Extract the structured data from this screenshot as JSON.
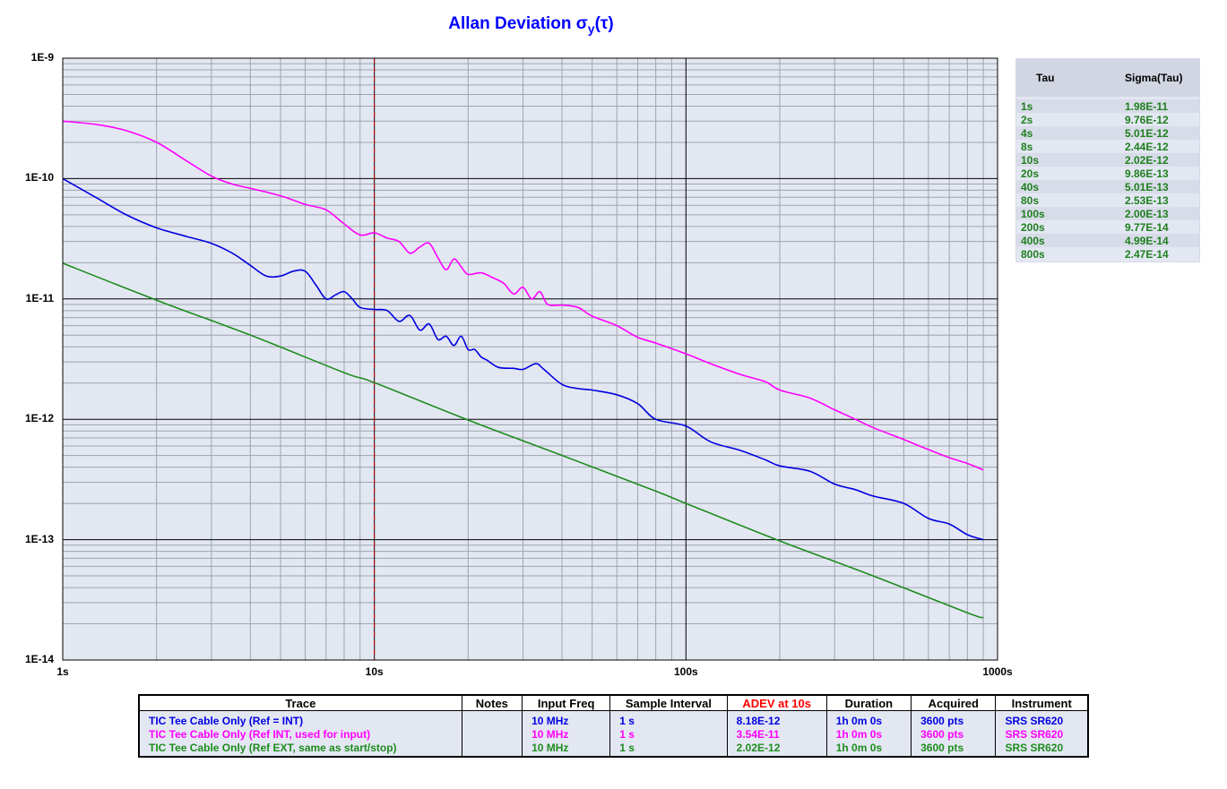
{
  "chart_data": {
    "type": "line",
    "title": "Allan Deviation",
    "title_symbol": "σ",
    "title_sub": "y",
    "title_tail": "(τ)",
    "xscale": "log",
    "yscale": "log",
    "xlim": [
      1,
      1000
    ],
    "ylim": [
      1e-14,
      1e-09
    ],
    "grid": true,
    "x_tick_labels": [
      "1s",
      "10s",
      "100s",
      "1000s"
    ],
    "y_tick_labels": [
      "1E-9",
      "1E-10",
      "1E-11",
      "1E-12",
      "1E-13",
      "1E-14"
    ],
    "marker_tau": 10,
    "marker_color": "#cc0000",
    "series": [
      {
        "name": "TIC Tee Cable Only (Ref = INT)",
        "color": "#0000e0",
        "x": [
          1,
          1.3,
          1.6,
          2,
          2.5,
          3,
          3.5,
          4,
          4.5,
          5,
          5.5,
          6,
          6.5,
          7,
          7.5,
          8,
          8.5,
          9,
          10,
          11,
          12,
          13,
          14,
          15,
          16,
          17,
          18,
          19,
          20,
          21,
          22,
          23,
          25,
          28,
          30,
          33,
          35,
          40,
          45,
          50,
          60,
          70,
          80,
          100,
          120,
          150,
          180,
          200,
          250,
          300,
          350,
          400,
          500,
          600,
          700,
          800,
          900
        ],
        "y": [
          1e-10,
          6.8e-11,
          5e-11,
          3.9e-11,
          3.3e-11,
          2.9e-11,
          2.4e-11,
          1.9e-11,
          1.55e-11,
          1.55e-11,
          1.7e-11,
          1.7e-11,
          1.3e-11,
          1e-11,
          1.08e-11,
          1.15e-11,
          1e-11,
          8.5e-12,
          8.18e-12,
          8e-12,
          6.5e-12,
          7.3e-12,
          5.5e-12,
          6.2e-12,
          4.6e-12,
          4.9e-12,
          4.1e-12,
          4.9e-12,
          3.8e-12,
          3.8e-12,
          3.3e-12,
          3.1e-12,
          2.7e-12,
          2.65e-12,
          2.6e-12,
          2.9e-12,
          2.6e-12,
          1.95e-12,
          1.8e-12,
          1.75e-12,
          1.6e-12,
          1.35e-12,
          1e-12,
          8.8e-13,
          6.5e-13,
          5.5e-13,
          4.6e-13,
          4.1e-13,
          3.7e-13,
          2.9e-13,
          2.6e-13,
          2.3e-13,
          2e-13,
          1.5e-13,
          1.35e-13,
          1.1e-13,
          1e-13
        ]
      },
      {
        "name": "TIC Tee Cable Only (Ref INT, used for input)",
        "color": "#ff00ff",
        "x": [
          1,
          1.3,
          1.6,
          2,
          2.5,
          3,
          3.5,
          4,
          5,
          6,
          7,
          8,
          9,
          10,
          11,
          12,
          13,
          14,
          15,
          16,
          17,
          18,
          19,
          20,
          22,
          24,
          26,
          28,
          30,
          32,
          34,
          36,
          40,
          45,
          50,
          60,
          70,
          80,
          100,
          120,
          150,
          180,
          200,
          250,
          300,
          350,
          400,
          500,
          600,
          700,
          800,
          900
        ],
        "y": [
          3e-10,
          2.8e-10,
          2.5e-10,
          2e-10,
          1.4e-10,
          1.05e-10,
          9e-11,
          8.3e-11,
          7.2e-11,
          6.1e-11,
          5.5e-11,
          4.2e-11,
          3.4e-11,
          3.54e-11,
          3.2e-11,
          3e-11,
          2.4e-11,
          2.7e-11,
          2.9e-11,
          2.2e-11,
          1.75e-11,
          2.15e-11,
          1.85e-11,
          1.6e-11,
          1.65e-11,
          1.5e-11,
          1.35e-11,
          1.1e-11,
          1.25e-11,
          1e-11,
          1.15e-11,
          9e-12,
          8.9e-12,
          8.5e-12,
          7.2e-12,
          6e-12,
          4.8e-12,
          4.3e-12,
          3.5e-12,
          2.9e-12,
          2.35e-12,
          2.05e-12,
          1.75e-12,
          1.5e-12,
          1.2e-12,
          1e-12,
          8.5e-13,
          6.8e-13,
          5.6e-13,
          4.8e-13,
          4.3e-13,
          3.8e-13
        ]
      },
      {
        "name": "TIC Tee Cable Only (Ref EXT, same as start/stop)",
        "color": "#1e8c1e",
        "x": [
          1,
          2,
          4,
          8,
          10,
          20,
          40,
          80,
          100,
          200,
          400,
          800,
          900
        ],
        "y": [
          1.98e-11,
          9.76e-12,
          5.01e-12,
          2.44e-12,
          2.02e-12,
          9.86e-13,
          5.01e-13,
          2.53e-13,
          2e-13,
          9.77e-14,
          4.99e-14,
          2.47e-14,
          2.25e-14
        ]
      }
    ]
  },
  "side_table": {
    "headers": [
      "Tau",
      "Sigma(Tau)"
    ],
    "rows": [
      [
        "1s",
        "1.98E-11"
      ],
      [
        "2s",
        "9.76E-12"
      ],
      [
        "4s",
        "5.01E-12"
      ],
      [
        "8s",
        "2.44E-12"
      ],
      [
        "10s",
        "2.02E-12"
      ],
      [
        "20s",
        "9.86E-13"
      ],
      [
        "40s",
        "5.01E-13"
      ],
      [
        "80s",
        "2.53E-13"
      ],
      [
        "100s",
        "2.00E-13"
      ],
      [
        "200s",
        "9.77E-14"
      ],
      [
        "400s",
        "4.99E-14"
      ],
      [
        "800s",
        "2.47E-14"
      ]
    ]
  },
  "trace_table": {
    "headers": [
      "Trace",
      "Notes",
      "Input Freq",
      "Sample Interval",
      "ADEV at 10s",
      "Duration",
      "Acquired",
      "Instrument"
    ],
    "header_highlight_color": "#ff0000",
    "rows": [
      {
        "color": "#0000e0",
        "cells": [
          "TIC Tee Cable Only (Ref = INT)",
          "",
          "10 MHz",
          "1 s",
          "8.18E-12",
          "1h 0m 0s",
          "3600 pts",
          "SRS SR620"
        ]
      },
      {
        "color": "#ff00ff",
        "cells": [
          "TIC Tee Cable Only (Ref INT, used for input)",
          "",
          "10 MHz",
          "1 s",
          "3.54E-11",
          "1h 0m 0s",
          "3600 pts",
          "SRS SR620"
        ]
      },
      {
        "color": "#1e8c1e",
        "cells": [
          "TIC Tee Cable Only (Ref EXT, same as start/stop)",
          "",
          "10 MHz",
          "1 s",
          "2.02E-12",
          "1h 0m 0s",
          "3600 pts",
          "SRS SR620"
        ]
      }
    ]
  },
  "colors": {
    "plot_background": "#e3e7f2",
    "minor_grid": "#9ea4ae",
    "major_grid": "#000000",
    "title": "#0000ff"
  }
}
